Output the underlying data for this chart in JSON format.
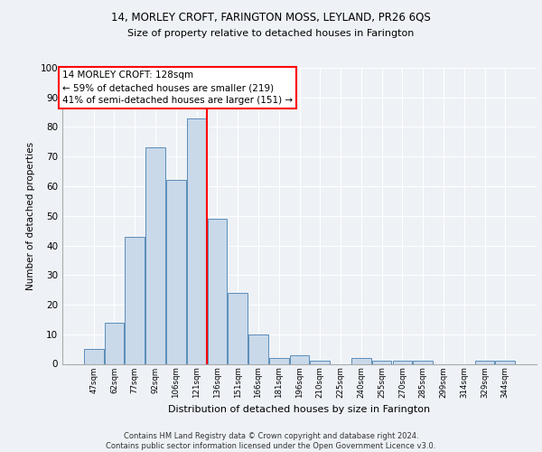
{
  "title1": "14, MORLEY CROFT, FARINGTON MOSS, LEYLAND, PR26 6QS",
  "title2": "Size of property relative to detached houses in Farington",
  "xlabel": "Distribution of detached houses by size in Farington",
  "ylabel": "Number of detached properties",
  "bar_labels": [
    "47sqm",
    "62sqm",
    "77sqm",
    "92sqm",
    "106sqm",
    "121sqm",
    "136sqm",
    "151sqm",
    "166sqm",
    "181sqm",
    "196sqm",
    "210sqm",
    "225sqm",
    "240sqm",
    "255sqm",
    "270sqm",
    "285sqm",
    "299sqm",
    "314sqm",
    "329sqm",
    "344sqm"
  ],
  "bar_values": [
    5,
    14,
    43,
    73,
    62,
    83,
    49,
    24,
    10,
    2,
    3,
    1,
    0,
    2,
    1,
    1,
    1,
    0,
    0,
    1,
    1
  ],
  "bar_color": "#c9d9ea",
  "bar_edge_color": "#5b8db8",
  "annotation_text": "14 MORLEY CROFT: 128sqm\n← 59% of detached houses are smaller (219)\n41% of semi-detached houses are larger (151) →",
  "vline_color": "red",
  "ylim": [
    0,
    100
  ],
  "footer": "Contains HM Land Registry data © Crown copyright and database right 2024.\nContains public sector information licensed under the Open Government Licence v3.0.",
  "background_color": "#eef2f7",
  "grid_color": "#ffffff"
}
